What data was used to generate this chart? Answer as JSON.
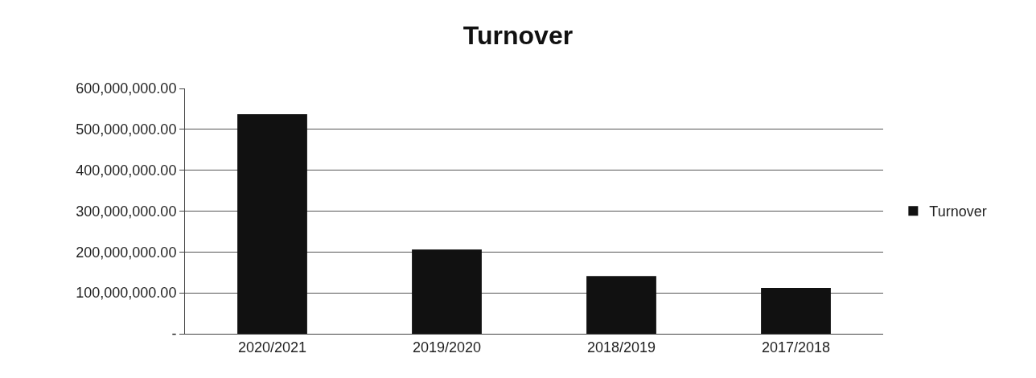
{
  "chart_data": {
    "type": "bar",
    "title": "Turnover",
    "categories": [
      "2020/2021",
      "2019/2020",
      "2018/2019",
      "2017/2018"
    ],
    "series": [
      {
        "name": "Turnover",
        "color": "#111111",
        "values": [
          537000000,
          206000000,
          141000000,
          112000000
        ]
      }
    ],
    "ylim": [
      0,
      600000000
    ],
    "yticks": [
      {
        "value": 0,
        "label": "-"
      },
      {
        "value": 100000000,
        "label": "100,000,000.00"
      },
      {
        "value": 200000000,
        "label": "200,000,000.00"
      },
      {
        "value": 300000000,
        "label": "300,000,000.00"
      },
      {
        "value": 400000000,
        "label": "400,000,000.00"
      },
      {
        "value": 500000000,
        "label": "500,000,000.00"
      },
      {
        "value": 600000000,
        "label": "600,000,000.00"
      }
    ],
    "grid": "y",
    "legend": "right"
  }
}
